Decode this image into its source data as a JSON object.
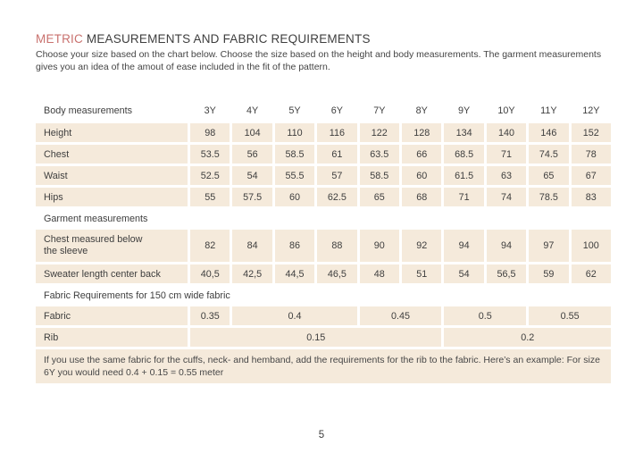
{
  "page": {
    "title_highlight": "METRIC",
    "title_rest": " MEASUREMENTS AND FABRIC REQUIREMENTS",
    "intro": "Choose your size based on the chart below. Choose the size based on the height and body measurements. The garment measurements gives you an idea of the amout of ease included in the fit of the pattern.",
    "page_number": "5"
  },
  "colors": {
    "accent": "#c9716e",
    "cell_background": "#f5eadb",
    "text": "#3e3e3e"
  },
  "table": {
    "header_label": "Body measurements",
    "sizes": [
      "3Y",
      "4Y",
      "5Y",
      "6Y",
      "7Y",
      "8Y",
      "9Y",
      "10Y",
      "11Y",
      "12Y"
    ],
    "body_rows": [
      {
        "label": "Height",
        "values": [
          "98",
          "104",
          "110",
          "116",
          "122",
          "128",
          "134",
          "140",
          "146",
          "152"
        ]
      },
      {
        "label": "Chest",
        "values": [
          "53.5",
          "56",
          "58.5",
          "61",
          "63.5",
          "66",
          "68.5",
          "71",
          "74.5",
          "78"
        ]
      },
      {
        "label": "Waist",
        "values": [
          "52.5",
          "54",
          "55.5",
          "57",
          "58.5",
          "60",
          "61.5",
          "63",
          "65",
          "67"
        ]
      },
      {
        "label": "Hips",
        "values": [
          "55",
          "57.5",
          "60",
          "62.5",
          "65",
          "68",
          "71",
          "74",
          "78.5",
          "83"
        ]
      }
    ],
    "garment_section_label": "Garment measurements",
    "garment_rows": [
      {
        "label": "Chest measured below the sleeve",
        "tall": true,
        "values": [
          "82",
          "84",
          "86",
          "88",
          "90",
          "92",
          "94",
          "94",
          "97",
          "100"
        ]
      },
      {
        "label": "Sweater length center back",
        "tall": false,
        "values": [
          "40,5",
          "42,5",
          "44,5",
          "46,5",
          "48",
          "51",
          "54",
          "56,5",
          "59",
          "62"
        ]
      }
    ],
    "fabric_section_label": "Fabric Requirements for 150 cm wide fabric",
    "fabric_rows": [
      {
        "label": "Fabric",
        "cells": [
          {
            "value": "0.35",
            "span": 1
          },
          {
            "value": "0.4",
            "span": 3
          },
          {
            "value": "0.45",
            "span": 2
          },
          {
            "value": "0.5",
            "span": 2
          },
          {
            "value": "0.55",
            "span": 2
          }
        ]
      },
      {
        "label": "Rib",
        "cells": [
          {
            "value": "0.15",
            "span": 6
          },
          {
            "value": "0.2",
            "span": 4
          }
        ]
      }
    ]
  },
  "note": "If you use the same fabric for the cuffs, neck- and hemband, add the requirements for the rib to the fabric. Here’s an example: For size 6Y you would need 0.4 + 0.15 = 0.55 meter"
}
